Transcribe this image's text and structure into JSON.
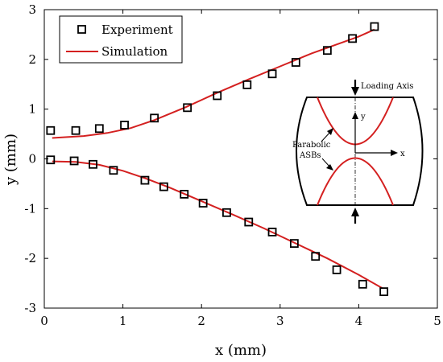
{
  "chart_data": {
    "type": "scatter",
    "title": "",
    "xlabel": "x (mm)",
    "ylabel": "y (mm)",
    "xlim": [
      0,
      5
    ],
    "ylim": [
      -3,
      3
    ],
    "xticks": [
      0,
      1,
      2,
      3,
      4,
      5
    ],
    "yticks": [
      -3,
      -2,
      -1,
      0,
      1,
      2,
      3
    ],
    "grid": false,
    "legend": "top-left",
    "colors": {
      "simulation": "#d42020",
      "experiment": "#000000",
      "inset_curve": "#d42020"
    },
    "series": [
      {
        "name": "Experiment",
        "kind": "markers",
        "marker": "square",
        "points": [
          {
            "x": 0.08,
            "y": 0.57
          },
          {
            "x": 0.4,
            "y": 0.57
          },
          {
            "x": 0.7,
            "y": 0.61
          },
          {
            "x": 1.02,
            "y": 0.68
          },
          {
            "x": 1.4,
            "y": 0.82
          },
          {
            "x": 1.82,
            "y": 1.03
          },
          {
            "x": 2.2,
            "y": 1.27
          },
          {
            "x": 2.58,
            "y": 1.49
          },
          {
            "x": 2.9,
            "y": 1.71
          },
          {
            "x": 3.2,
            "y": 1.94
          },
          {
            "x": 3.6,
            "y": 2.18
          },
          {
            "x": 3.92,
            "y": 2.42
          },
          {
            "x": 4.2,
            "y": 2.66
          },
          {
            "x": 0.08,
            "y": -0.02
          },
          {
            "x": 0.38,
            "y": -0.04
          },
          {
            "x": 0.62,
            "y": -0.11
          },
          {
            "x": 0.88,
            "y": -0.23
          },
          {
            "x": 1.28,
            "y": -0.43
          },
          {
            "x": 1.52,
            "y": -0.56
          },
          {
            "x": 1.78,
            "y": -0.71
          },
          {
            "x": 2.02,
            "y": -0.89
          },
          {
            "x": 2.32,
            "y": -1.08
          },
          {
            "x": 2.6,
            "y": -1.27
          },
          {
            "x": 2.9,
            "y": -1.47
          },
          {
            "x": 3.18,
            "y": -1.7
          },
          {
            "x": 3.45,
            "y": -1.96
          },
          {
            "x": 3.72,
            "y": -2.23
          },
          {
            "x": 4.05,
            "y": -2.52
          },
          {
            "x": 4.32,
            "y": -2.67
          }
        ]
      },
      {
        "name": "Simulation",
        "kind": "lines",
        "segments": [
          [
            {
              "x": 0.1,
              "y": 0.42
            },
            {
              "x": 0.5,
              "y": 0.46
            },
            {
              "x": 0.8,
              "y": 0.52
            },
            {
              "x": 1.1,
              "y": 0.62
            },
            {
              "x": 1.4,
              "y": 0.78
            },
            {
              "x": 1.8,
              "y": 1.04
            },
            {
              "x": 2.2,
              "y": 1.33
            },
            {
              "x": 2.6,
              "y": 1.6
            },
            {
              "x": 3.0,
              "y": 1.86
            },
            {
              "x": 3.4,
              "y": 2.12
            },
            {
              "x": 3.7,
              "y": 2.29
            },
            {
              "x": 4.0,
              "y": 2.46
            },
            {
              "x": 4.2,
              "y": 2.6
            }
          ],
          [
            {
              "x": 0.1,
              "y": -0.05
            },
            {
              "x": 0.4,
              "y": -0.06
            },
            {
              "x": 0.7,
              "y": -0.12
            },
            {
              "x": 1.0,
              "y": -0.24
            },
            {
              "x": 1.3,
              "y": -0.4
            },
            {
              "x": 1.6,
              "y": -0.58
            },
            {
              "x": 2.0,
              "y": -0.85
            },
            {
              "x": 2.4,
              "y": -1.12
            },
            {
              "x": 2.8,
              "y": -1.4
            },
            {
              "x": 3.2,
              "y": -1.7
            },
            {
              "x": 3.6,
              "y": -2.0
            },
            {
              "x": 4.0,
              "y": -2.33
            },
            {
              "x": 4.3,
              "y": -2.6
            }
          ]
        ]
      }
    ],
    "inset": {
      "loading_axis_label": "Loading Axis",
      "asb_label_line1": "Parabolic",
      "asb_label_line2": "ASBs",
      "axis_y_label": "y",
      "axis_x_label": "x"
    }
  }
}
